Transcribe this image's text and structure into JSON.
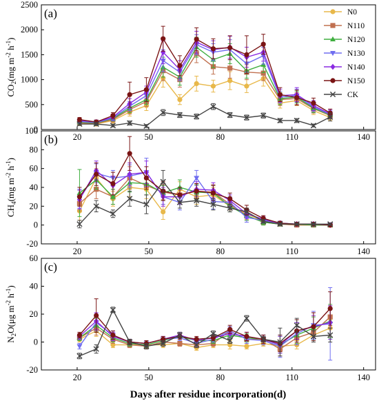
{
  "figure": {
    "xlabel": "Days after residue incorporation(d)"
  },
  "colors": {
    "N0": "#e8b84a",
    "N110": "#c0704f",
    "N120": "#3fae3f",
    "N130": "#6f6df0",
    "N140": "#8a2be2",
    "N150": "#7a1414",
    "CK": "#444444"
  },
  "legend": [
    "N0",
    "N110",
    "N120",
    "N130",
    "N140",
    "N150",
    "CK"
  ],
  "chart_data": [
    {
      "type": "line",
      "panel_label": "(a)",
      "ylabel_main": "CO",
      "ylabel_sub": "2",
      "ylabel_unit": "(mg m",
      "ylabel_exp1": "-2",
      "ylabel_mid": " h",
      "ylabel_exp2": "-1",
      "ylabel_end": ")",
      "xlim": [
        5,
        145
      ],
      "ylim": [
        0,
        2500
      ],
      "xticks": [
        "20",
        "50",
        "80",
        "110",
        "140"
      ],
      "yticks": [
        "0",
        "500",
        "1000",
        "1500",
        "2000",
        "2500"
      ],
      "x": [
        21,
        28,
        35,
        42,
        49,
        56,
        63,
        70,
        77,
        84,
        91,
        98,
        105,
        112,
        119,
        126
      ],
      "series": [
        {
          "name": "N0",
          "values": [
            120,
            110,
            180,
            350,
            480,
            1030,
            600,
            920,
            870,
            980,
            870,
            1020,
            530,
            580,
            380,
            240
          ],
          "err": [
            40,
            40,
            50,
            80,
            100,
            180,
            100,
            150,
            120,
            180,
            130,
            150,
            100,
            100,
            80,
            60
          ]
        },
        {
          "name": "N110",
          "values": [
            140,
            120,
            200,
            400,
            560,
            1180,
            1000,
            1520,
            1260,
            1230,
            1150,
            1130,
            600,
            620,
            420,
            280
          ],
          "err": [
            40,
            40,
            50,
            90,
            100,
            200,
            150,
            180,
            150,
            200,
            150,
            150,
            120,
            120,
            90,
            70
          ]
        },
        {
          "name": "N120",
          "values": [
            150,
            130,
            220,
            430,
            600,
            1250,
            1050,
            1650,
            1400,
            1520,
            1180,
            1300,
            620,
            650,
            430,
            290
          ],
          "err": [
            40,
            40,
            50,
            90,
            100,
            200,
            160,
            200,
            160,
            200,
            150,
            160,
            120,
            120,
            90,
            70
          ]
        },
        {
          "name": "N130",
          "values": [
            160,
            140,
            230,
            470,
            680,
            1380,
            1150,
            1700,
            1550,
            1600,
            1320,
            1480,
            650,
            680,
            450,
            300
          ],
          "err": [
            40,
            40,
            50,
            90,
            120,
            220,
            170,
            200,
            170,
            200,
            170,
            170,
            120,
            130,
            90,
            70
          ]
        },
        {
          "name": "N140",
          "values": [
            180,
            150,
            250,
            520,
            750,
            1550,
            1200,
            1750,
            1600,
            1650,
            1450,
            1550,
            680,
            700,
            480,
            310
          ],
          "err": [
            40,
            40,
            60,
            100,
            120,
            230,
            180,
            220,
            180,
            220,
            200,
            180,
            130,
            140,
            100,
            80
          ]
        },
        {
          "name": "N150",
          "values": [
            200,
            150,
            280,
            700,
            800,
            1820,
            1280,
            1810,
            1620,
            1640,
            1500,
            1710,
            700,
            640,
            530,
            330
          ],
          "err": [
            40,
            40,
            60,
            250,
            240,
            250,
            200,
            230,
            200,
            240,
            380,
            200,
            140,
            150,
            100,
            80
          ]
        },
        {
          "name": "CK",
          "values": [
            110,
            110,
            80,
            130,
            70,
            340,
            290,
            260,
            460,
            290,
            240,
            280,
            180,
            180,
            80,
            250
          ],
          "err": [
            30,
            30,
            30,
            40,
            30,
            60,
            50,
            50,
            60,
            50,
            50,
            50,
            40,
            40,
            30,
            80
          ]
        }
      ]
    },
    {
      "type": "line",
      "panel_label": "(b)",
      "ylabel_main": "CH",
      "ylabel_sub": "4",
      "ylabel_unit": "(mg m",
      "ylabel_exp1": "-2",
      "ylabel_mid": " h",
      "ylabel_exp2": "-1",
      "ylabel_end": ")",
      "xlim": [
        5,
        145
      ],
      "ylim": [
        -20,
        100
      ],
      "xticks": [
        "20",
        "50",
        "80",
        "110",
        "140"
      ],
      "yticks": [
        "-20",
        "0",
        "20",
        "40",
        "60",
        "80",
        "100"
      ],
      "x": [
        21,
        28,
        35,
        42,
        49,
        56,
        63,
        70,
        77,
        84,
        91,
        98,
        105,
        112,
        119,
        126
      ],
      "series": [
        {
          "name": "N0",
          "values": [
            15,
            50,
            28,
            40,
            38,
            14,
            38,
            30,
            32,
            20,
            12,
            4,
            1,
            0,
            0,
            0
          ],
          "err": [
            10,
            10,
            8,
            10,
            10,
            8,
            8,
            8,
            8,
            6,
            6,
            3,
            2,
            1,
            1,
            1
          ]
        },
        {
          "name": "N110",
          "values": [
            23,
            38,
            30,
            50,
            42,
            35,
            32,
            36,
            35,
            22,
            10,
            3,
            1,
            0,
            0,
            0
          ],
          "err": [
            8,
            10,
            8,
            12,
            10,
            8,
            8,
            8,
            8,
            6,
            5,
            3,
            2,
            1,
            1,
            1
          ]
        },
        {
          "name": "N120",
          "values": [
            34,
            48,
            30,
            45,
            44,
            34,
            40,
            35,
            34,
            20,
            10,
            3,
            1,
            1,
            0,
            0
          ],
          "err": [
            25,
            10,
            8,
            10,
            12,
            8,
            8,
            8,
            8,
            6,
            5,
            3,
            2,
            1,
            1,
            1
          ]
        },
        {
          "name": "N130",
          "values": [
            28,
            55,
            50,
            52,
            56,
            30,
            24,
            50,
            25,
            24,
            8,
            5,
            2,
            1,
            1,
            0
          ],
          "err": [
            10,
            10,
            8,
            12,
            15,
            8,
            8,
            8,
            8,
            6,
            5,
            3,
            2,
            1,
            1,
            1
          ]
        },
        {
          "name": "N140",
          "values": [
            27,
            58,
            42,
            54,
            56,
            30,
            30,
            38,
            37,
            26,
            12,
            6,
            2,
            1,
            1,
            0
          ],
          "err": [
            10,
            10,
            10,
            12,
            12,
            10,
            8,
            8,
            8,
            6,
            5,
            3,
            2,
            1,
            1,
            1
          ]
        },
        {
          "name": "N150",
          "values": [
            30,
            54,
            44,
            76,
            50,
            36,
            32,
            36,
            34,
            28,
            16,
            7,
            2,
            1,
            1,
            0
          ],
          "err": [
            10,
            12,
            12,
            18,
            12,
            10,
            8,
            8,
            8,
            6,
            5,
            3,
            2,
            1,
            1,
            1
          ]
        },
        {
          "name": "CK",
          "values": [
            1,
            20,
            12,
            28,
            22,
            46,
            24,
            26,
            22,
            18,
            14,
            4,
            1,
            1,
            1,
            1
          ],
          "err": [
            4,
            6,
            4,
            8,
            10,
            12,
            6,
            6,
            6,
            4,
            4,
            2,
            1,
            1,
            1,
            1
          ]
        }
      ]
    },
    {
      "type": "line",
      "panel_label": "(c)",
      "ylabel_main": "N",
      "ylabel_sub": "2",
      "ylabel_unit": "O(μg m",
      "ylabel_exp1": "-2",
      "ylabel_mid": " h",
      "ylabel_exp2": "-1",
      "ylabel_end": ")",
      "xlim": [
        5,
        145
      ],
      "ylim": [
        -20,
        60
      ],
      "xticks": [
        "20",
        "50",
        "80",
        "110",
        "140"
      ],
      "yticks": [
        "-20",
        "0",
        "20",
        "40",
        "60"
      ],
      "x": [
        21,
        28,
        35,
        42,
        49,
        56,
        63,
        70,
        77,
        84,
        91,
        98,
        105,
        112,
        119,
        126
      ],
      "series": [
        {
          "name": "N0",
          "values": [
            2,
            8,
            -2,
            -2,
            -2,
            -2,
            -1,
            -4,
            -2,
            -2,
            -3,
            -1,
            -3,
            -2,
            5,
            10
          ],
          "err": [
            2,
            4,
            2,
            2,
            2,
            2,
            2,
            2,
            2,
            3,
            2,
            2,
            3,
            3,
            5,
            6
          ]
        },
        {
          "name": "N110",
          "values": [
            3,
            10,
            2,
            -2,
            -3,
            0,
            -1,
            -2,
            -1,
            8,
            2,
            2,
            -5,
            3,
            7,
            18
          ],
          "err": [
            2,
            5,
            3,
            2,
            2,
            2,
            2,
            2,
            2,
            3,
            3,
            3,
            5,
            5,
            6,
            8
          ]
        },
        {
          "name": "N120",
          "values": [
            3,
            12,
            3,
            -1,
            -2,
            1,
            4,
            1,
            1,
            5,
            3,
            2,
            -2,
            5,
            10,
            15
          ],
          "err": [
            2,
            5,
            3,
            2,
            2,
            2,
            2,
            2,
            2,
            3,
            3,
            3,
            6,
            6,
            8,
            12
          ]
        },
        {
          "name": "N130",
          "values": [
            -3,
            14,
            5,
            0,
            -1,
            2,
            3,
            -1,
            2,
            8,
            2,
            1,
            -3,
            6,
            12,
            13
          ],
          "err": [
            2,
            6,
            3,
            2,
            2,
            2,
            2,
            2,
            2,
            3,
            3,
            3,
            8,
            8,
            10,
            26
          ]
        },
        {
          "name": "N140",
          "values": [
            4,
            15,
            4,
            0,
            -1,
            2,
            5,
            1,
            3,
            6,
            4,
            2,
            -2,
            8,
            11,
            14
          ],
          "err": [
            2,
            6,
            3,
            2,
            2,
            2,
            2,
            2,
            2,
            3,
            3,
            3,
            6,
            6,
            8,
            12
          ]
        },
        {
          "name": "N150",
          "values": [
            5,
            19,
            5,
            0,
            -1,
            2,
            4,
            2,
            3,
            9,
            4,
            2,
            -1,
            8,
            11,
            24
          ],
          "err": [
            2,
            12,
            3,
            2,
            2,
            2,
            2,
            2,
            2,
            3,
            3,
            3,
            6,
            8,
            10,
            12
          ]
        },
        {
          "name": "CK",
          "values": [
            -10,
            -5,
            23,
            0,
            -3,
            -1,
            5,
            -2,
            6,
            1,
            17,
            2,
            0,
            12,
            4,
            5
          ],
          "err": [
            2,
            3,
            2,
            2,
            2,
            2,
            2,
            2,
            2,
            2,
            2,
            2,
            10,
            5,
            4,
            5
          ]
        }
      ]
    }
  ]
}
